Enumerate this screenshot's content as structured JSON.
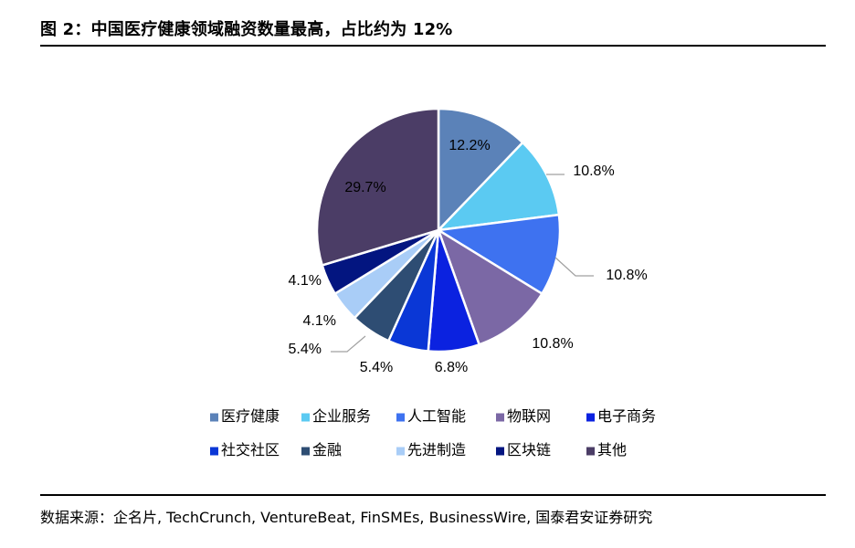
{
  "title": "图 2：中国医疗健康领域融资数量最高，占比约为 12%",
  "source": "数据来源：企名片, TechCrunch, VentureBeat, FinSMEs, BusinessWire, 国泰君安证券研究",
  "chart_data": {
    "type": "pie",
    "categories": [
      "医疗健康",
      "企业服务",
      "人工智能",
      "物联网",
      "电子商务",
      "社交社区",
      "金融",
      "先进制造",
      "区块链",
      "其他"
    ],
    "values": [
      12.2,
      10.8,
      10.8,
      10.8,
      6.8,
      5.4,
      5.4,
      4.1,
      4.1,
      29.7
    ],
    "labels": [
      "12.2%",
      "10.8%",
      "10.8%",
      "10.8%",
      "6.8%",
      "5.4%",
      "5.4%",
      "4.1%",
      "4.1%",
      "29.7%"
    ],
    "colors": [
      "#5b82b8",
      "#5bcaf2",
      "#3e72f0",
      "#7b68a5",
      "#0b22e0",
      "#0a37d6",
      "#2e4d73",
      "#a9cdf7",
      "#031580",
      "#4b3d66"
    ],
    "legend_position": "bottom",
    "start_angle": "12 o'clock, clockwise"
  }
}
